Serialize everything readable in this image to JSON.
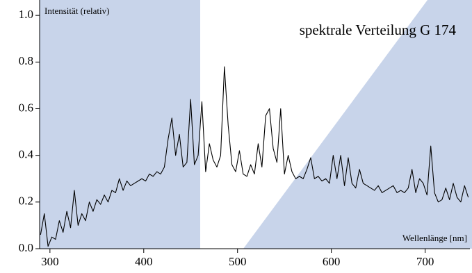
{
  "chart_data": {
    "type": "line",
    "title": "spektrale Verteilung G 174",
    "ylabel": "Intensität (relativ)",
    "xlabel": "Wellenlänge [nm]",
    "x": [
      290,
      294,
      298,
      302,
      306,
      310,
      314,
      318,
      322,
      326,
      330,
      334,
      338,
      342,
      346,
      350,
      354,
      358,
      362,
      366,
      370,
      374,
      378,
      382,
      386,
      390,
      394,
      398,
      402,
      406,
      410,
      414,
      418,
      422,
      426,
      430,
      434,
      438,
      442,
      446,
      450,
      454,
      458,
      462,
      466,
      470,
      474,
      478,
      482,
      486,
      490,
      494,
      498,
      502,
      506,
      510,
      514,
      518,
      522,
      526,
      530,
      534,
      538,
      542,
      546,
      550,
      554,
      558,
      562,
      566,
      570,
      574,
      578,
      582,
      586,
      590,
      594,
      598,
      602,
      606,
      610,
      614,
      618,
      622,
      626,
      630,
      634,
      638,
      642,
      646,
      650,
      654,
      658,
      662,
      666,
      670,
      674,
      678,
      682,
      686,
      690,
      694,
      698,
      702,
      706,
      710,
      714,
      718,
      722,
      726,
      730,
      734,
      738,
      742,
      746
    ],
    "series": [
      {
        "color": "#000000",
        "values": [
          0.06,
          0.15,
          0.01,
          0.05,
          0.04,
          0.12,
          0.07,
          0.16,
          0.09,
          0.25,
          0.1,
          0.15,
          0.12,
          0.2,
          0.16,
          0.21,
          0.19,
          0.23,
          0.2,
          0.25,
          0.24,
          0.3,
          0.25,
          0.29,
          0.27,
          0.28,
          0.29,
          0.3,
          0.29,
          0.32,
          0.31,
          0.33,
          0.32,
          0.35,
          0.47,
          0.56,
          0.4,
          0.49,
          0.35,
          0.37,
          0.64,
          0.36,
          0.4,
          0.63,
          0.33,
          0.45,
          0.38,
          0.35,
          0.4,
          0.78,
          0.53,
          0.36,
          0.33,
          0.42,
          0.32,
          0.31,
          0.36,
          0.32,
          0.45,
          0.35,
          0.57,
          0.6,
          0.43,
          0.37,
          0.6,
          0.32,
          0.4,
          0.33,
          0.3,
          0.31,
          0.3,
          0.34,
          0.39,
          0.3,
          0.31,
          0.29,
          0.3,
          0.28,
          0.4,
          0.3,
          0.4,
          0.27,
          0.39,
          0.28,
          0.26,
          0.34,
          0.28,
          0.27,
          0.26,
          0.25,
          0.27,
          0.24,
          0.25,
          0.26,
          0.27,
          0.24,
          0.25,
          0.24,
          0.26,
          0.34,
          0.24,
          0.3,
          0.28,
          0.23,
          0.44,
          0.24,
          0.2,
          0.21,
          0.26,
          0.21,
          0.28,
          0.22,
          0.2,
          0.27,
          0.22
        ]
      }
    ],
    "xlim": [
      289,
      747
    ],
    "xticks": [
      300,
      400,
      500,
      600,
      700
    ],
    "ylim": [
      0,
      1.06
    ],
    "yticks": [
      {
        "value": 0,
        "label": "0.0"
      },
      0.2,
      0.4,
      0.6,
      0.8,
      {
        "value": 1,
        "label": "1.0"
      }
    ]
  }
}
